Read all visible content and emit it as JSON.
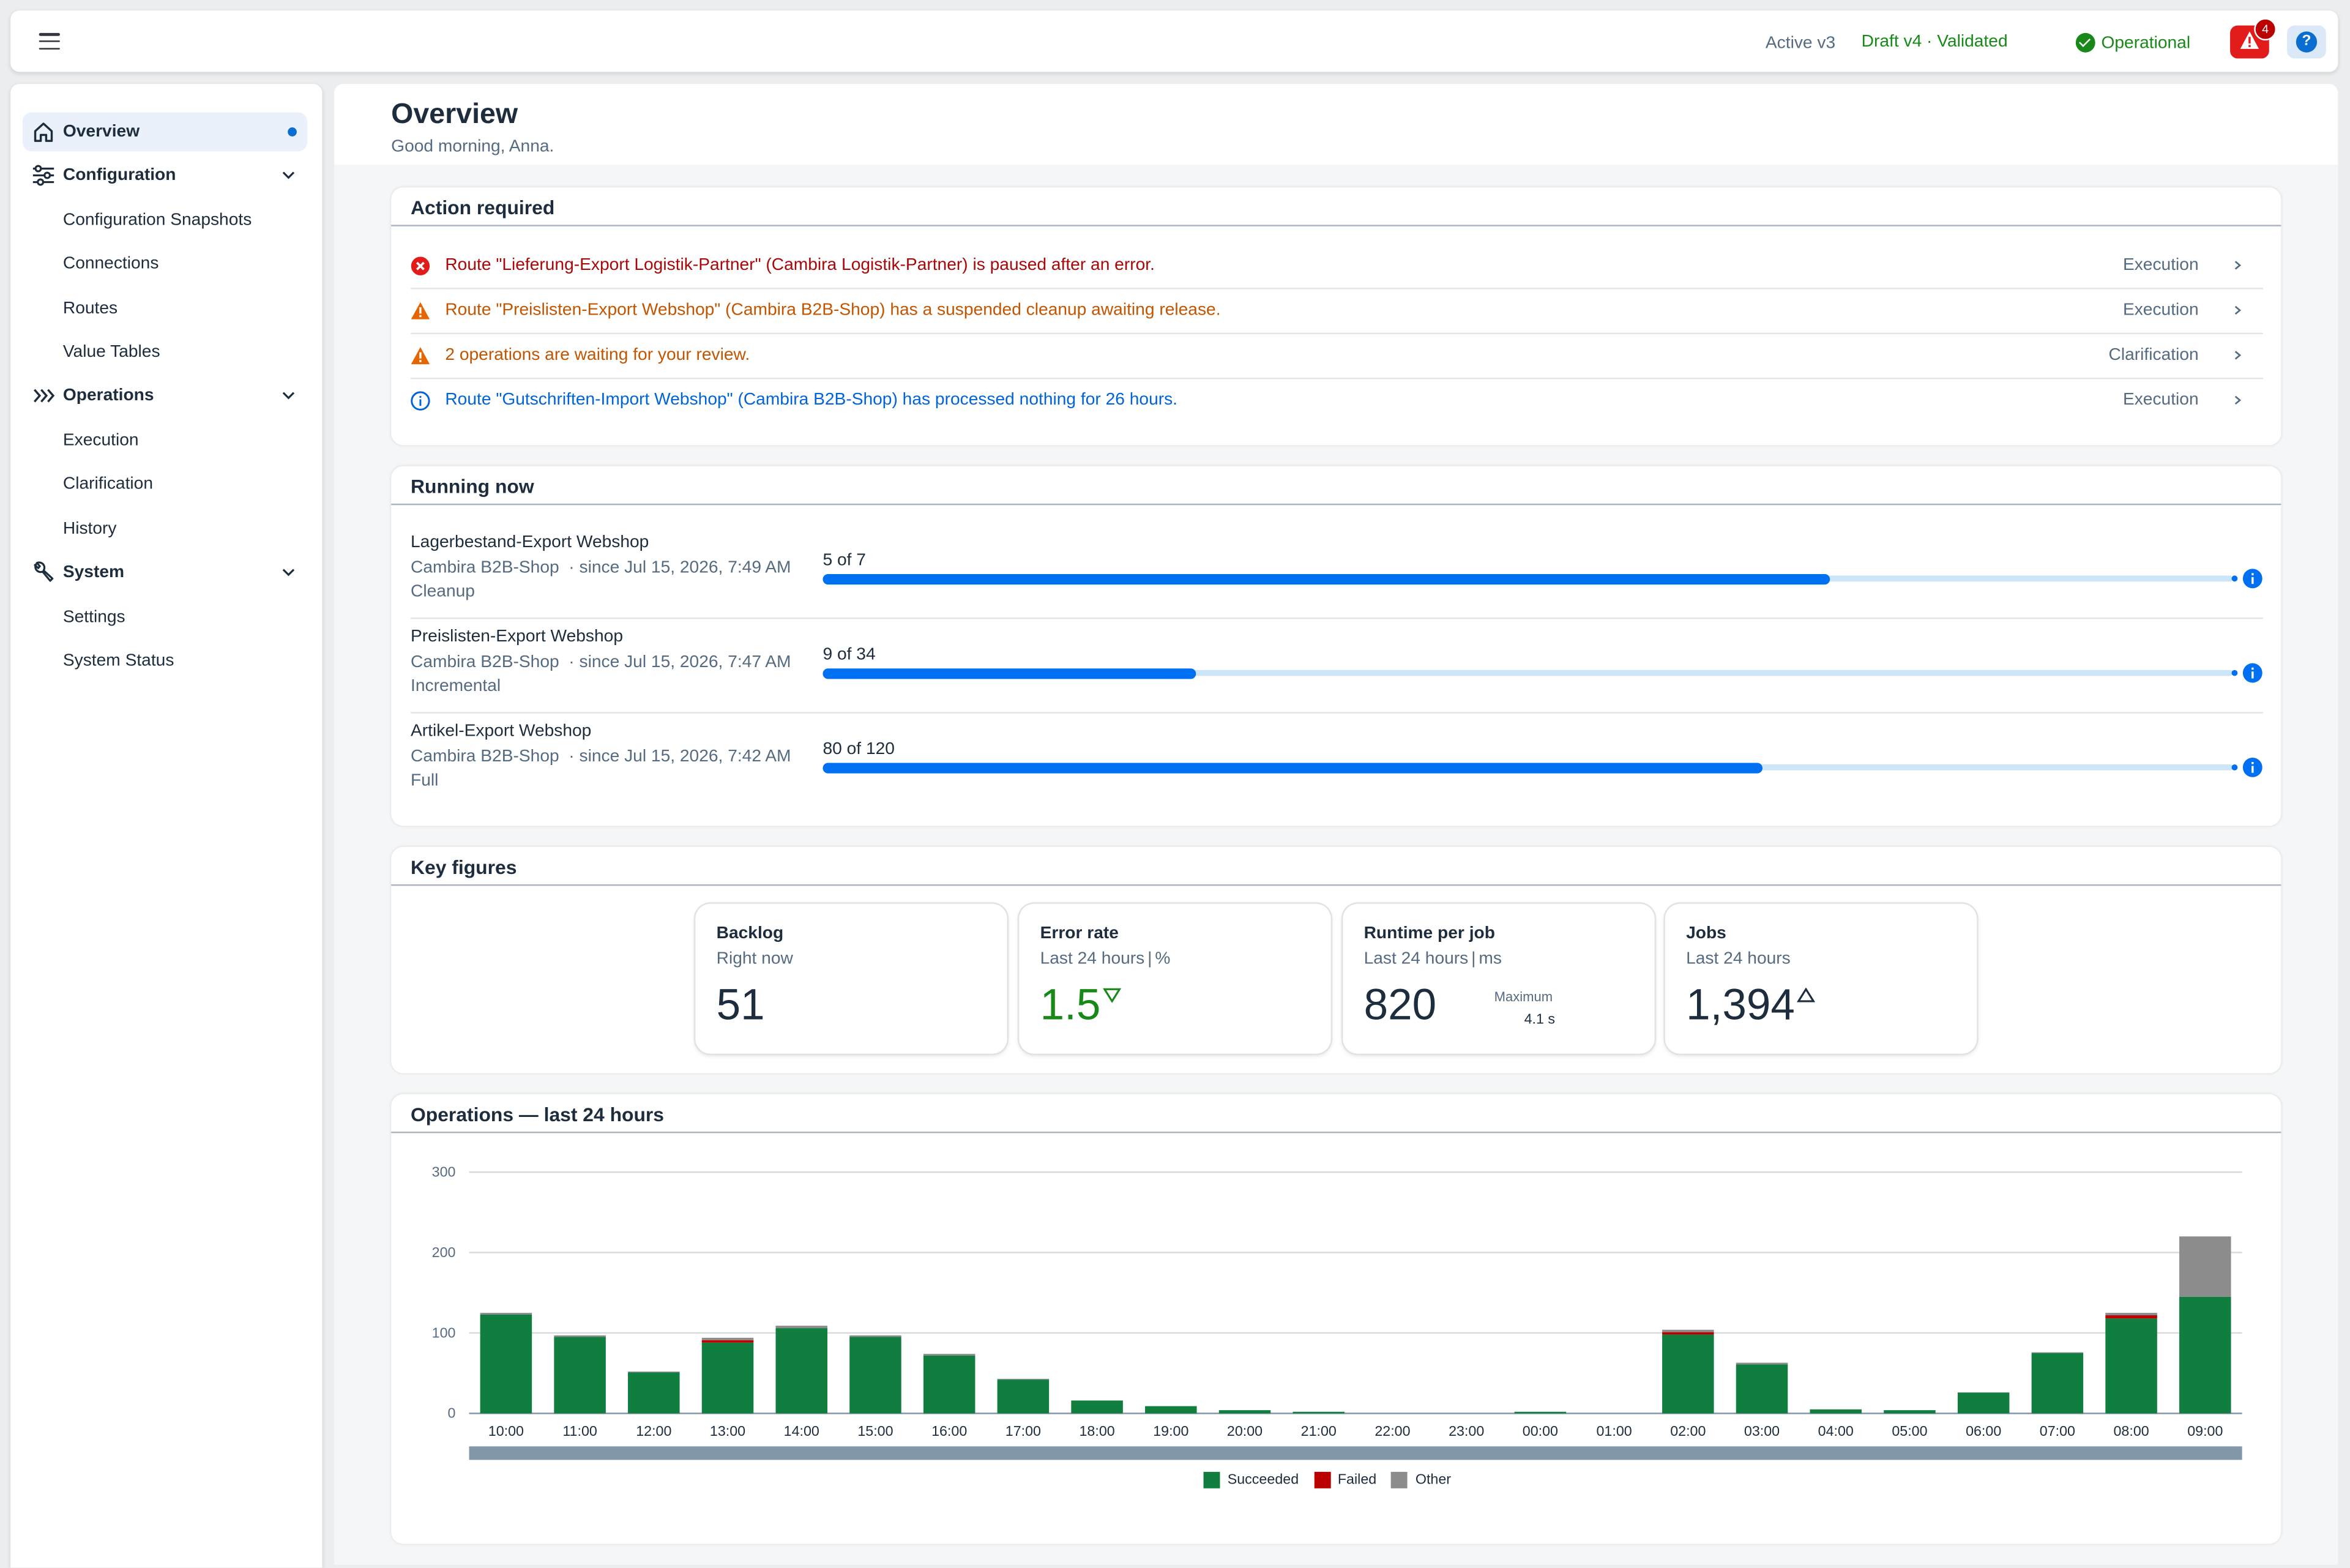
{
  "shell": {
    "active_version": "Active v3",
    "draft_version": "Draft v4 · Validated",
    "status": "Operational",
    "alert_count": "4",
    "help_label": "?"
  },
  "nav": {
    "overview": "Overview",
    "configuration": "Configuration",
    "configuration_snapshots": "Configuration Snapshots",
    "connections": "Connections",
    "routes": "Routes",
    "value_tables": "Value Tables",
    "operations": "Operations",
    "execution": "Execution",
    "clarification": "Clarification",
    "history": "History",
    "system": "System",
    "settings": "Settings",
    "system_status": "System Status"
  },
  "page": {
    "title": "Overview",
    "greeting": "Good morning, Anna."
  },
  "action_required": {
    "title": "Action required",
    "items": [
      {
        "severity": "error",
        "text": "Route \"Lieferung-Export Logistik-Partner\" (Cambira Logistik-Partner) is paused after an error.",
        "category": "Execution"
      },
      {
        "severity": "warning",
        "text": "Route \"Preislisten-Export Webshop\" (Cambira B2B-Shop) has a suspended cleanup awaiting release.",
        "category": "Execution"
      },
      {
        "severity": "warning",
        "text": "2 operations are waiting for your review.",
        "category": "Clarification"
      },
      {
        "severity": "info",
        "text": "Route \"Gutschriften-Import Webshop\" (Cambira B2B-Shop) has processed nothing for 26 hours.",
        "category": "Execution"
      }
    ]
  },
  "running_now": {
    "title": "Running now",
    "items": [
      {
        "name": "Lagerbestand-Export Webshop",
        "system": "Cambira B2B-Shop",
        "since": "· since Jul 15, 2026, 7:49 AM",
        "mode": "Cleanup",
        "progress_label": "5 of 7",
        "done": 5,
        "total": 7
      },
      {
        "name": "Preislisten-Export Webshop",
        "system": "Cambira B2B-Shop",
        "since": "· since Jul 15, 2026, 7:47 AM",
        "mode": "Incremental",
        "progress_label": "9 of 34",
        "done": 9,
        "total": 34
      },
      {
        "name": "Artikel-Export Webshop",
        "system": "Cambira B2B-Shop",
        "since": "· since Jul 15, 2026, 7:42 AM",
        "mode": "Full",
        "progress_label": "80 of 120",
        "done": 80,
        "total": 120
      }
    ]
  },
  "key_figures": {
    "title": "Key figures",
    "tiles": [
      {
        "title": "Backlog",
        "subtitle": "Right now",
        "unit": "",
        "value": "51"
      },
      {
        "title": "Error rate",
        "subtitle": "Last 24 hours",
        "unit": "%",
        "value": "1.5",
        "trend": "down"
      },
      {
        "title": "Runtime per job",
        "subtitle": "Last 24 hours",
        "unit": "ms",
        "value": "820",
        "max_label": "Maximum",
        "max_value": "4.1 s"
      },
      {
        "title": "Jobs",
        "subtitle": "Last 24 hours",
        "unit": "",
        "value": "1,394",
        "trend": "up"
      }
    ]
  },
  "operations_chart": {
    "title": "Operations — last 24 hours"
  },
  "chart_data": {
    "type": "bar",
    "stacked": true,
    "categories": [
      "10:00",
      "11:00",
      "12:00",
      "13:00",
      "14:00",
      "15:00",
      "16:00",
      "17:00",
      "18:00",
      "19:00",
      "20:00",
      "21:00",
      "22:00",
      "23:00",
      "00:00",
      "01:00",
      "02:00",
      "03:00",
      "04:00",
      "05:00",
      "06:00",
      "07:00",
      "08:00",
      "09:00"
    ],
    "series": [
      {
        "name": "Succeeded",
        "color": "#107e3e",
        "values": [
          123,
          95,
          51,
          88,
          106,
          95,
          72,
          42,
          16,
          9,
          4,
          2,
          0,
          0,
          2,
          0,
          98,
          61,
          5,
          4,
          26,
          75,
          118,
          145
        ]
      },
      {
        "name": "Failed",
        "color": "#bb0000",
        "values": [
          0,
          0,
          0,
          3,
          0,
          0,
          0,
          0,
          0,
          0,
          0,
          0,
          0,
          0,
          0,
          0,
          3,
          0,
          0,
          0,
          0,
          0,
          4,
          0
        ]
      },
      {
        "name": "Other",
        "color": "#8c8c8c",
        "values": [
          2,
          2,
          1,
          3,
          3,
          2,
          2,
          1,
          0,
          0,
          0,
          0,
          0,
          0,
          0,
          0,
          3,
          2,
          0,
          0,
          0,
          1,
          3,
          75
        ]
      }
    ],
    "ylim": [
      0,
      300
    ],
    "yticks": [
      0,
      100,
      200,
      300
    ],
    "grid": true,
    "legend": "bottom"
  }
}
